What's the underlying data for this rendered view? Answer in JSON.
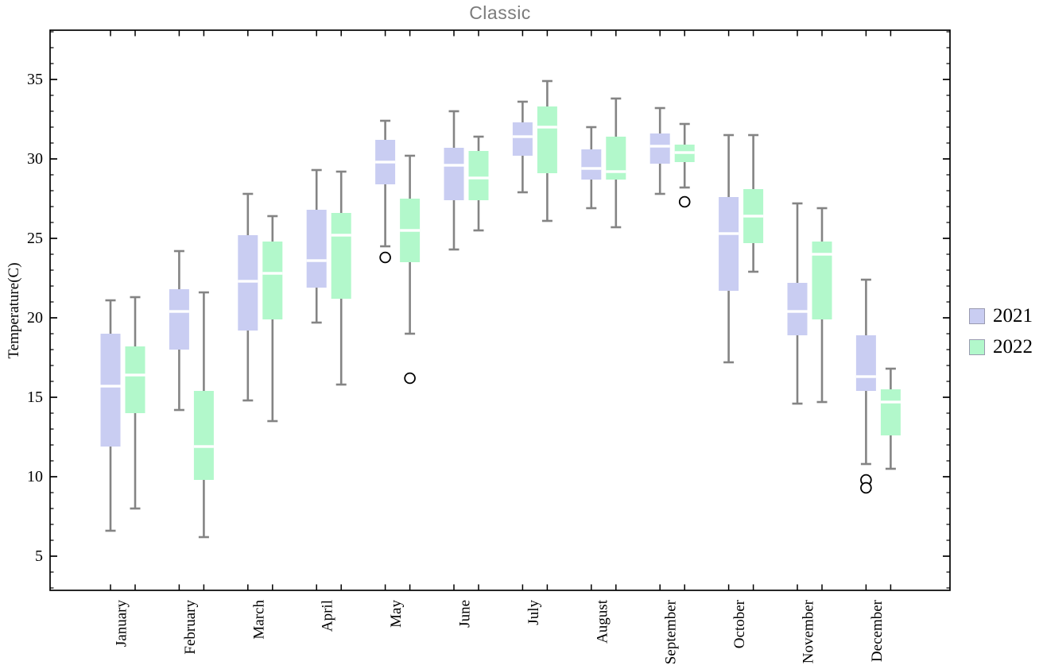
{
  "title": "Classic",
  "chart_data": {
    "type": "boxplot",
    "title": "Classic",
    "xlabel": "",
    "ylabel": "Temperature(C)",
    "categories": [
      "January",
      "February",
      "March",
      "April",
      "May",
      "June",
      "July",
      "August",
      "September",
      "October",
      "November",
      "December"
    ],
    "ylim": [
      2.85,
      38.1
    ],
    "yticks": [
      5,
      10,
      15,
      20,
      25,
      30,
      35
    ],
    "minor_tick_step": 1,
    "grid": false,
    "legend_position": "right-center",
    "series": [
      {
        "name": "2021",
        "color": "#c9cdf2",
        "boxes": [
          {
            "low": 6.6,
            "q1": 11.9,
            "median": 15.7,
            "q3": 19.0,
            "high": 21.1,
            "outliers": []
          },
          {
            "low": 14.2,
            "q1": 18.0,
            "median": 20.4,
            "q3": 21.8,
            "high": 24.2,
            "outliers": []
          },
          {
            "low": 14.8,
            "q1": 19.2,
            "median": 22.3,
            "q3": 25.2,
            "high": 27.8,
            "outliers": []
          },
          {
            "low": 19.7,
            "q1": 21.9,
            "median": 23.6,
            "q3": 26.8,
            "high": 29.3,
            "outliers": []
          },
          {
            "low": 24.5,
            "q1": 28.4,
            "median": 29.8,
            "q3": 31.2,
            "high": 32.4,
            "outliers": [
              23.8
            ]
          },
          {
            "low": 24.3,
            "q1": 27.4,
            "median": 29.6,
            "q3": 30.7,
            "high": 33.0,
            "outliers": []
          },
          {
            "low": 27.9,
            "q1": 30.2,
            "median": 31.4,
            "q3": 32.3,
            "high": 33.6,
            "outliers": []
          },
          {
            "low": 26.9,
            "q1": 28.7,
            "median": 29.4,
            "q3": 30.6,
            "high": 32.0,
            "outliers": []
          },
          {
            "low": 27.8,
            "q1": 29.7,
            "median": 30.8,
            "q3": 31.6,
            "high": 33.2,
            "outliers": []
          },
          {
            "low": 17.2,
            "q1": 21.7,
            "median": 25.3,
            "q3": 27.6,
            "high": 31.5,
            "outliers": []
          },
          {
            "low": 14.6,
            "q1": 18.9,
            "median": 20.4,
            "q3": 22.2,
            "high": 27.2,
            "outliers": []
          },
          {
            "low": 10.8,
            "q1": 15.4,
            "median": 16.3,
            "q3": 18.9,
            "high": 22.4,
            "outliers": [
              9.8,
              9.3
            ]
          }
        ]
      },
      {
        "name": "2022",
        "color": "#b2f8cb",
        "boxes": [
          {
            "low": 8.0,
            "q1": 14.0,
            "median": 16.4,
            "q3": 18.2,
            "high": 21.3,
            "outliers": []
          },
          {
            "low": 6.2,
            "q1": 9.8,
            "median": 11.9,
            "q3": 15.4,
            "high": 21.6,
            "outliers": []
          },
          {
            "low": 13.5,
            "q1": 19.9,
            "median": 22.8,
            "q3": 24.8,
            "high": 26.4,
            "outliers": []
          },
          {
            "low": 15.8,
            "q1": 21.2,
            "median": 25.2,
            "q3": 26.6,
            "high": 29.2,
            "outliers": []
          },
          {
            "low": 19.0,
            "q1": 23.5,
            "median": 25.5,
            "q3": 27.5,
            "high": 30.2,
            "outliers": [
              16.2
            ]
          },
          {
            "low": 25.5,
            "q1": 27.4,
            "median": 28.8,
            "q3": 30.5,
            "high": 31.4,
            "outliers": []
          },
          {
            "low": 26.1,
            "q1": 29.1,
            "median": 32.0,
            "q3": 33.3,
            "high": 34.9,
            "outliers": []
          },
          {
            "low": 25.7,
            "q1": 28.7,
            "median": 29.2,
            "q3": 31.4,
            "high": 33.8,
            "outliers": []
          },
          {
            "low": 28.2,
            "q1": 29.8,
            "median": 30.4,
            "q3": 30.9,
            "high": 32.2,
            "outliers": [
              27.3
            ]
          },
          {
            "low": 22.9,
            "q1": 24.7,
            "median": 26.4,
            "q3": 28.1,
            "high": 31.5,
            "outliers": []
          },
          {
            "low": 14.7,
            "q1": 19.9,
            "median": 24.0,
            "q3": 24.8,
            "high": 26.9,
            "outliers": []
          },
          {
            "low": 10.5,
            "q1": 12.6,
            "median": 14.7,
            "q3": 15.5,
            "high": 16.8,
            "outliers": []
          }
        ]
      }
    ],
    "style": {
      "frame_color": "#000000",
      "whisker_color": "#848484",
      "median_color": "#ffffff",
      "outlier_stroke": "#000000",
      "outlier_fill": "#ffffff",
      "title_color": "#7b7b7b"
    }
  }
}
